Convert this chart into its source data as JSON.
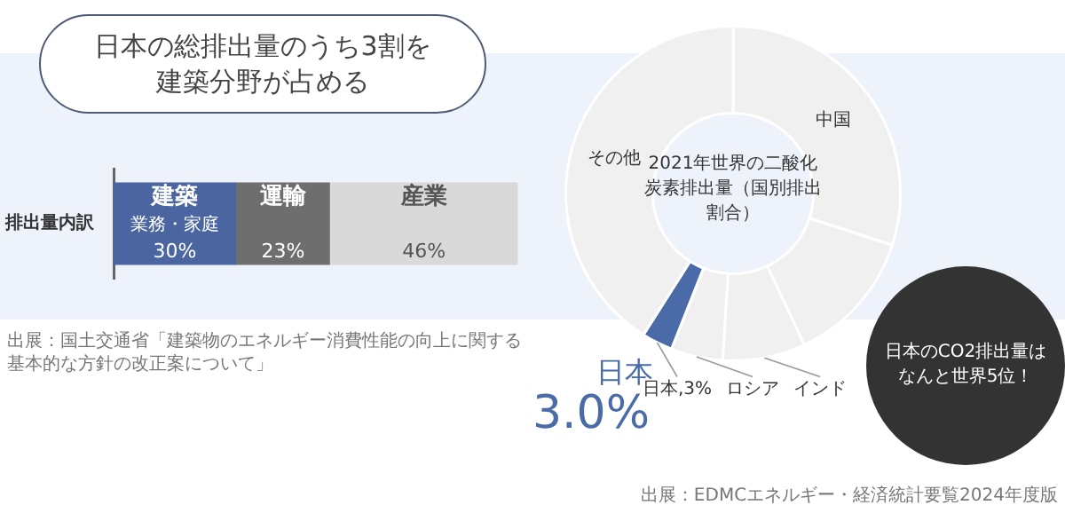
{
  "chart_data": [
    {
      "type": "bar",
      "orientation": "horizontal",
      "stacked": true,
      "title": "日本の総排出量のうち3割を建築分野が占める",
      "categories": [
        "排出量内訳"
      ],
      "tick_labels": "y",
      "series": [
        {
          "name": "建築",
          "color": "#4a65a0",
          "values": [
            30
          ],
          "value_labels": [
            "30%"
          ]
        },
        {
          "name": "運輸",
          "color": "#6e6e6e",
          "values": [
            23
          ],
          "value_labels": [
            "23%"
          ]
        },
        {
          "name": "産業",
          "color": "#d9d9d9",
          "values": [
            46
          ],
          "value_labels": [
            "46%"
          ]
        }
      ],
      "annotations": [
        "業務・家庭",
        "出展：国土交通省「建築物のエネルギー消費性能の向上に関する基本的な方針の改正案について」"
      ]
    },
    {
      "type": "donut",
      "title": "2021年世界の二酸化炭素排出量（国別排出割合）",
      "categories": [
        "中国",
        null,
        "インド",
        "ロシア",
        "日本",
        "その他"
      ],
      "values": [
        30,
        13,
        8,
        5,
        3,
        41
      ],
      "colors": [
        "#f0f0f0",
        "#f0f0f0",
        "#f0f0f0",
        "#f0f0f0",
        "#4a6aa8",
        "#f0f0f0"
      ],
      "value_labels": [
        null,
        null,
        null,
        null,
        "日本,3%",
        null
      ],
      "annotations": [
        "3.0%",
        "日本のCO2排出量はなんと世界5位！",
        "出展：EDMCエネルギー・経済統計要覧2024年度版"
      ]
    }
  ]
}
